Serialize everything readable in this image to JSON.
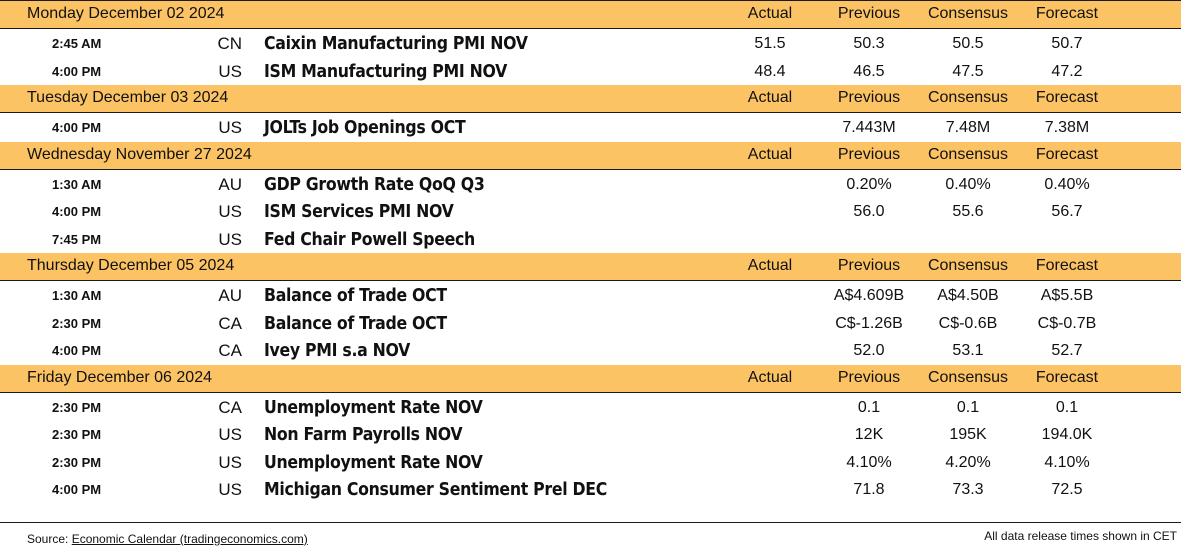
{
  "columns": {
    "actual": "Actual",
    "previous": "Previous",
    "consensus": "Consensus",
    "forecast": "Forecast"
  },
  "days": [
    {
      "date": "Monday December 02 2024",
      "events": [
        {
          "time": "2:45 AM",
          "country": "CN",
          "event": "Caixin Manufacturing PMI NOV",
          "actual": "51.5",
          "previous": "50.3",
          "consensus": "50.5",
          "forecast": "50.7"
        },
        {
          "time": "4:00 PM",
          "country": "US",
          "event": "ISM Manufacturing PMI NOV",
          "actual": "48.4",
          "previous": "46.5",
          "consensus": "47.5",
          "forecast": "47.2"
        }
      ]
    },
    {
      "date": "Tuesday December 03 2024",
      "events": [
        {
          "time": "4:00 PM",
          "country": "US",
          "event": "JOLTs Job Openings OCT",
          "actual": "",
          "previous": "7.443M",
          "consensus": "7.48M",
          "forecast": "7.38M"
        }
      ]
    },
    {
      "date": "Wednesday November 27 2024",
      "events": [
        {
          "time": "1:30 AM",
          "country": "AU",
          "event": "GDP Growth Rate QoQ Q3",
          "actual": "",
          "previous": "0.20%",
          "consensus": "0.40%",
          "forecast": "0.40%"
        },
        {
          "time": "4:00 PM",
          "country": "US",
          "event": "ISM Services PMI NOV",
          "actual": "",
          "previous": "56.0",
          "consensus": "55.6",
          "forecast": "56.7"
        },
        {
          "time": "7:45 PM",
          "country": "US",
          "event": "Fed Chair Powell Speech",
          "actual": "",
          "previous": "",
          "consensus": "",
          "forecast": ""
        }
      ]
    },
    {
      "date": "Thursday December 05 2024",
      "events": [
        {
          "time": "1:30 AM",
          "country": "AU",
          "event": "Balance of Trade OCT",
          "actual": "",
          "previous": "A$4.609B",
          "consensus": "A$4.50B",
          "forecast": "A$5.5B"
        },
        {
          "time": "2:30 PM",
          "country": "CA",
          "event": "Balance of Trade OCT",
          "actual": "",
          "previous": "C$-1.26B",
          "consensus": "C$-0.6B",
          "forecast": "C$-0.7B"
        },
        {
          "time": "4:00 PM",
          "country": "CA",
          "event": "Ivey PMI s.a NOV",
          "actual": "",
          "previous": "52.0",
          "consensus": "53.1",
          "forecast": "52.7"
        }
      ]
    },
    {
      "date": "Friday December 06 2024",
      "events": [
        {
          "time": "2:30 PM",
          "country": "CA",
          "event": "Unemployment Rate NOV",
          "actual": "",
          "previous": "0.1",
          "consensus": "0.1",
          "forecast": "0.1"
        },
        {
          "time": "2:30 PM",
          "country": "US",
          "event": "Non Farm Payrolls NOV",
          "actual": "",
          "previous": "12K",
          "consensus": "195K",
          "forecast": "194.0K"
        },
        {
          "time": "2:30 PM",
          "country": "US",
          "event": "Unemployment Rate NOV",
          "actual": "",
          "previous": "4.10%",
          "consensus": "4.20%",
          "forecast": "4.10%"
        },
        {
          "time": "4:00 PM",
          "country": "US",
          "event": "Michigan Consumer Sentiment Prel DEC",
          "actual": "",
          "previous": "71.8",
          "consensus": "73.3",
          "forecast": "72.5"
        }
      ]
    }
  ],
  "footer": {
    "source_prefix": "Source: ",
    "source_link": "Economic Calendar (tradingeconomics.com)",
    "note": "All data release times shown in CET"
  },
  "colors": {
    "header_bg": "#fcc364"
  }
}
